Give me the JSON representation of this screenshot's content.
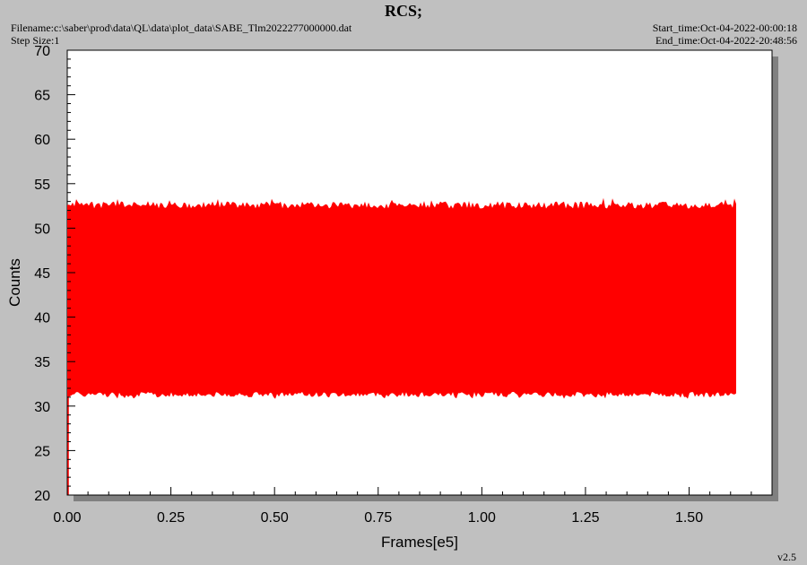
{
  "header": {
    "title": "RCS;",
    "filename": "Filename:c:\\saber\\prod\\data\\QL\\data\\plot_data\\SABE_Tlm2022277000000.dat",
    "step_size": "Step Size:1",
    "start_time": "Start_time:Oct-04-2022-00:00:18",
    "end_time": "End_time:Oct-04-2022-20:48:56"
  },
  "version": "v2.5",
  "colors": {
    "background": "#c0c0c0",
    "plot_area": "#ffffff",
    "series": "#ff0000",
    "shadow": "#808080"
  },
  "chart_data": {
    "type": "area",
    "title": "RCS;",
    "xlabel": "Frames[e5]",
    "ylabel": "Counts",
    "xlim": [
      0,
      1.7
    ],
    "ylim": [
      20,
      70
    ],
    "xticks": [
      "0.00",
      "0.25",
      "0.50",
      "0.75",
      "1.00",
      "1.25",
      "1.50"
    ],
    "yticks": [
      "20",
      "25",
      "30",
      "35",
      "40",
      "45",
      "50",
      "55",
      "60",
      "65",
      "70"
    ],
    "grid": false,
    "series": [
      {
        "x_range": [
          0,
          1.615
        ],
        "band_low": 31,
        "band_high": 53,
        "spike_min": 20
      }
    ]
  }
}
